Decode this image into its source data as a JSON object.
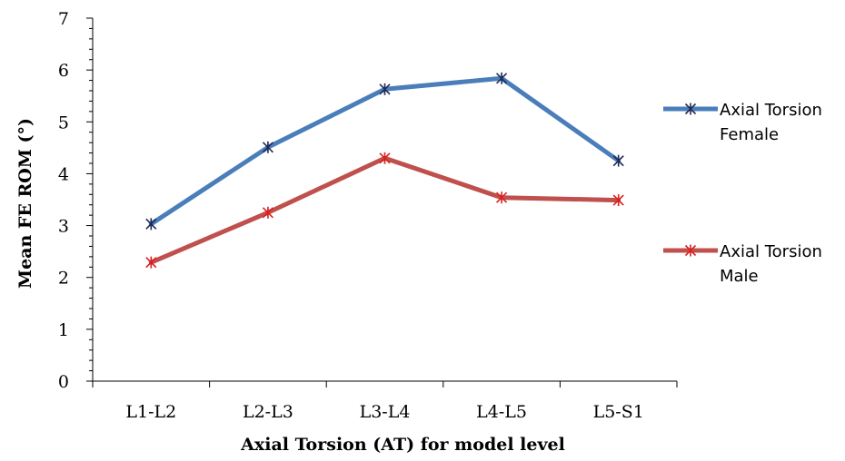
{
  "chart_data": {
    "type": "line",
    "categories": [
      "L1-L2",
      "L2-L3",
      "L3-L4",
      "L4-L5",
      "L5-S1"
    ],
    "series": [
      {
        "name": "Axial Torsion Female",
        "legend_lines": [
          "Axial Torsion",
          "Female"
        ],
        "color": "#4a7ebb",
        "marker_color": "#1f2a55",
        "values": [
          3.03,
          4.51,
          5.63,
          5.84,
          4.25
        ]
      },
      {
        "name": "Axial Torsion Male",
        "legend_lines": [
          "Axial Torsion",
          "Male"
        ],
        "color": "#c0504d",
        "marker_color": "#d92020",
        "values": [
          2.29,
          3.25,
          4.3,
          3.54,
          3.49
        ]
      }
    ],
    "xlabel": "Axial Torsion (AT) for model level",
    "ylabel": "Mean FE ROM (°)",
    "ylim": [
      0,
      7
    ],
    "yticks": [
      0,
      1,
      2,
      3,
      4,
      5,
      6,
      7
    ],
    "grid": false,
    "legend_position": "right"
  }
}
